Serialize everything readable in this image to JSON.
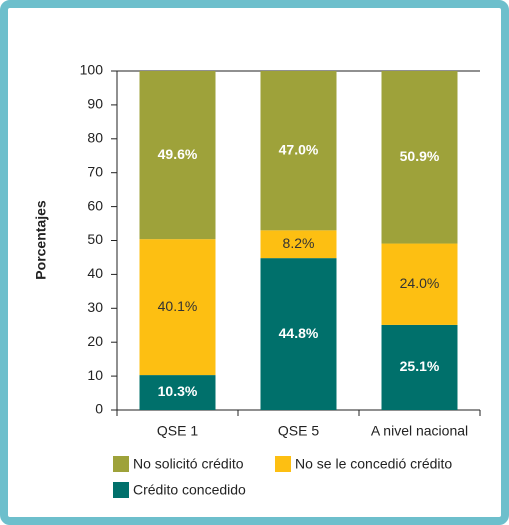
{
  "chart_data": {
    "type": "stacked-bar",
    "y_label": "Porcentajes",
    "categories": [
      "QSE 1",
      "QSE 5",
      "A nivel nacional"
    ],
    "series": [
      {
        "name": "Crédito concedido",
        "color": "#00706b",
        "values": [
          10.3,
          44.8,
          25.1
        ],
        "value_labels": [
          "10.3%",
          "44.8%",
          "25.1%"
        ]
      },
      {
        "name": "No se le concedió crédito",
        "color": "#fdbf12",
        "values": [
          40.1,
          8.2,
          24.0
        ],
        "value_labels": [
          "40.1%",
          "8.2%",
          "24.0%"
        ]
      },
      {
        "name": "No solicitó crédito",
        "color": "#9ea23a",
        "values": [
          49.6,
          47.0,
          50.9
        ],
        "value_labels": [
          "49.6%",
          "47.0%",
          "50.9%"
        ]
      }
    ],
    "ylim": [
      0,
      100
    ],
    "yticks": [
      0,
      10,
      20,
      30,
      40,
      50,
      60,
      70,
      80,
      90,
      100
    ]
  }
}
